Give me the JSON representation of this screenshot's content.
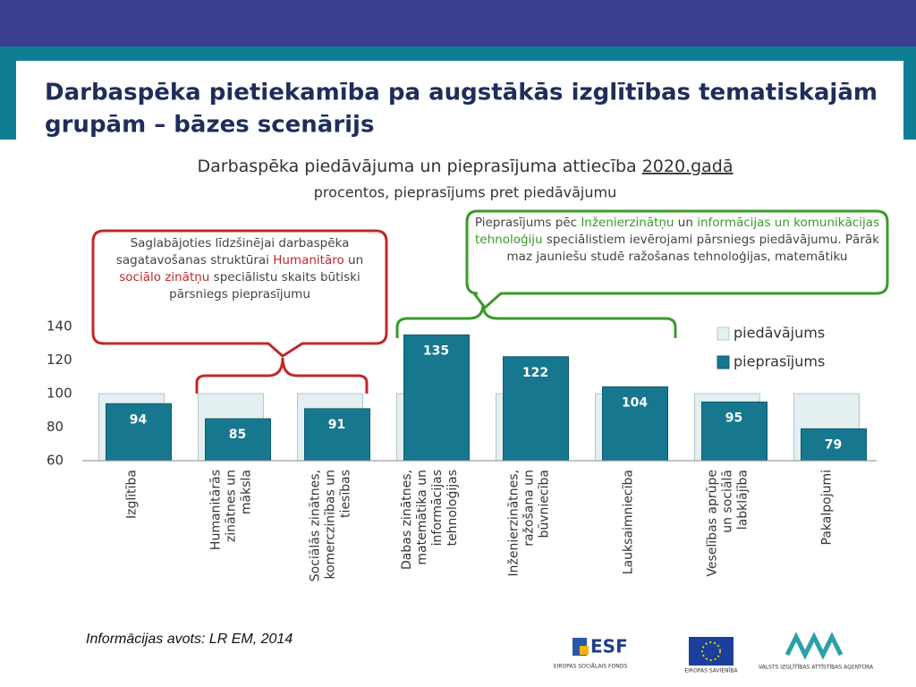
{
  "header": {
    "title_lines": [
      "Darbaspēka pietiekamība pa augstākās izglītības tematiskajām",
      "grupām – bāzes scenārijs"
    ]
  },
  "chart_data": {
    "type": "bar",
    "subtitle_parts": [
      "Darbaspēka piedāvājuma un pieprasījuma attiecība",
      "2020.gadā"
    ],
    "subtitle2": "procentos, pieprasījums pret piedāvājumu",
    "categories": [
      "Izglītība",
      "Humanitārās\nzinātnes un\nmāksla",
      "Sociālās zinātnes,\nkomerczinības un\ntiesības",
      "Dabas zinātnes,\nmatemātika un\ninformācijas\ntehnoloģijas",
      "Inženierzinātnes,\nražošana un\nbūvniecība",
      "Lauksaimniecība",
      "Veselības aprūpe\nun sociālā\nlabklājība",
      "Pakalpojumi"
    ],
    "series": [
      {
        "name": "piedāvājums",
        "color": "#e4eff1",
        "values": [
          100,
          100,
          100,
          100,
          100,
          100,
          100,
          100
        ]
      },
      {
        "name": "pieprasījums",
        "color": "#17778f",
        "values": [
          94,
          85,
          91,
          135,
          122,
          104,
          95,
          79
        ],
        "data_labels": true
      }
    ],
    "ylim": [
      60,
      140
    ],
    "yticks": [
      60,
      80,
      100,
      120,
      140
    ],
    "annotations": [
      {
        "color": "#c0282a",
        "parts": [
          {
            "text": "Saglabājoties līdzšinējai darbaspēka sagatavošanas struktūrai ",
            "highlight": false
          },
          {
            "text": "Humanitāro",
            "highlight": true
          },
          {
            "text": " un ",
            "highlight": false
          },
          {
            "text": "sociālo zinātņu",
            "highlight": true
          },
          {
            "text": " speciālistu skaits būtiski pārsniegs pieprasījumu",
            "highlight": false
          }
        ]
      },
      {
        "color": "#3a9a2a",
        "parts": [
          {
            "text": "Pieprasījums pēc ",
            "highlight": false
          },
          {
            "text": "Inženierzinātņu",
            "highlight": true
          },
          {
            "text": " un ",
            "highlight": false
          },
          {
            "text": "informācijas un komunikācijas tehnoloģiju",
            "highlight": true
          },
          {
            "text": " speciālistiem ievērojami pārsniegs piedāvājumu. Pārāk maz jauniešu studē ražošanas tehnoloģijas, matemātiku",
            "highlight": false
          }
        ]
      }
    ]
  },
  "footer": {
    "source": "Informācijas avots: LR EM, 2014",
    "esf": "ESF",
    "esf_caption": "EIROPAS SOCIĀLAIS FONDS",
    "eu_caption": "EIROPAS SAVIENĪBA",
    "viaa_caption": "VALSTS IZGLĪTĪBAS ATTĪSTĪBAS AĢENTŪRA"
  }
}
